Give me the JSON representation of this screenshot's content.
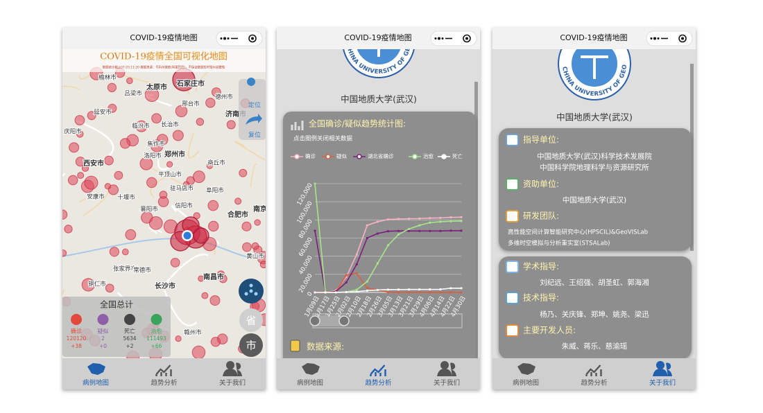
{
  "screens": [
    {
      "title": "COVID-19疫情地图",
      "heading": "COVID-19疫情全国可视化地图",
      "note": "数据统计截止07-25 11:20 数据来源：号码AI搜索(阿里巴巴)，不保证数据实时性与完整性",
      "cities": [
        "榆林市",
        "太原市",
        "石家庄市",
        "吕梁市",
        "邢台市",
        "德州市",
        "延安市",
        "临汾市",
        "长治市",
        "济南市",
        "庆阳市",
        "郑州市",
        "焦作市",
        "西安市",
        "洛阳市",
        "平顶山市",
        "商丘市",
        "安康市",
        "十堰市",
        "阜阳市",
        "驻马店市",
        "襄阳市",
        "合肥市",
        "信阳市",
        "张家界市",
        "常德市",
        "南昌市",
        "长沙市",
        "黄山市",
        "铜仁市",
        "赣州市",
        "南京市"
      ],
      "buttons": [
        "定位",
        "复位",
        "省",
        "市"
      ],
      "summary": {
        "title": "全国总计",
        "items": [
          {
            "label": "确诊",
            "value": "120120",
            "delta": "+38"
          },
          {
            "label": "疑似",
            "value": "2",
            "delta": "+0"
          },
          {
            "label": "死亡",
            "value": "5634",
            "delta": "+2"
          },
          {
            "label": "治愈",
            "value": "111493",
            "delta": "+66"
          }
        ]
      }
    },
    {
      "title": "COVID-19疫情地图",
      "logo_text": "CHINA UNIVERSITY OF GEOSCIENCES",
      "university": "中国地质大学(武汉)",
      "card_title": "全国确诊/疑似趋势统计图:",
      "hint": "点击图例关闭相关数据",
      "source_title": "数据来源:"
    },
    {
      "title": "COVID-19疫情地图",
      "logo_text": "CHINA UNIVERSITY OF GEOSCIENCES",
      "university": "中国地质大学(武汉)",
      "sections": [
        {
          "title": "指导单位:",
          "lines": [
            "中国地质大学(武汉)科学技术发展院",
            "中国科学院地理科学与资源研究所"
          ]
        },
        {
          "title": "资助单位:",
          "lines": [
            "中国地质大学(武汉)"
          ]
        },
        {
          "title": "研发团队:",
          "lines": [
            "高性能空间计算智能研究中心(HPSCIL)&GeoVISLab",
            "多维时空模拟与分析重实室(STSALab)"
          ]
        },
        {
          "title": "学术指导:",
          "lines": [
            "刘纪远、王绍强、胡圣虹、郭海湘"
          ]
        },
        {
          "title": "技术指导:",
          "lines": [
            "杨乃、关庆锋、郑坤、姚尧、梁迅"
          ]
        },
        {
          "title": "主要开发人员:",
          "lines": [
            "朱威、蒋乐、慈渝瑶"
          ]
        }
      ]
    }
  ],
  "tabs": [
    "病例地图",
    "趋势分析",
    "关于我们"
  ],
  "chart_data": {
    "type": "line",
    "categories": [
      "1月09日",
      "1月17日",
      "1月25日",
      "2月02日",
      "2月10日",
      "2月18日",
      "2月26日",
      "3月05日",
      "3月13日",
      "3月21日",
      "3月29日",
      "4月06日",
      "4月14日",
      "4月22日",
      "4月30日"
    ],
    "series": [
      {
        "name": "确诊",
        "color": "#f7b3c4",
        "values": [
          0,
          45,
          2000,
          17000,
          42000,
          74000,
          78000,
          80500,
          81000,
          81300,
          81500,
          82000,
          82200,
          82800,
          83000
        ]
      },
      {
        "name": "疑似",
        "color": "#d9603f",
        "values": [
          0,
          0,
          1000,
          19000,
          21000,
          5000,
          2500,
          300,
          100,
          100,
          100,
          50,
          20,
          10,
          5
        ]
      },
      {
        "name": "湖北省确诊",
        "color": "#7a1f7c",
        "values": [
          68000,
          0,
          1000,
          11000,
          31000,
          60000,
          65000,
          67500,
          67800,
          67800,
          67800,
          67800,
          67800,
          68100,
          68100
        ]
      },
      {
        "name": "治愈",
        "color": "#a6e58a",
        "values": [
          120000,
          0,
          30,
          500,
          3000,
          12000,
          32000,
          52000,
          64000,
          70000,
          74000,
          77000,
          78000,
          78500,
          78800
        ]
      },
      {
        "name": "死亡",
        "color": "#ffffff",
        "values": [
          0,
          0,
          50,
          350,
          900,
          1900,
          2700,
          3100,
          3200,
          3260,
          3300,
          3330,
          3340,
          4630,
          4640
        ]
      }
    ],
    "ylim": [
      0,
      120000
    ],
    "yticks": [
      0,
      {
        "value": 20000,
        "label": "20,000"
      },
      {
        "value": 40000,
        "label": "40,000"
      },
      {
        "value": 60000,
        "label": "60,000"
      },
      {
        "value": 80000,
        "label": "80,000"
      },
      {
        "value": 100000,
        "label": "100,000"
      },
      {
        "value": 120000,
        "label": "120,000"
      }
    ],
    "grid": true
  }
}
